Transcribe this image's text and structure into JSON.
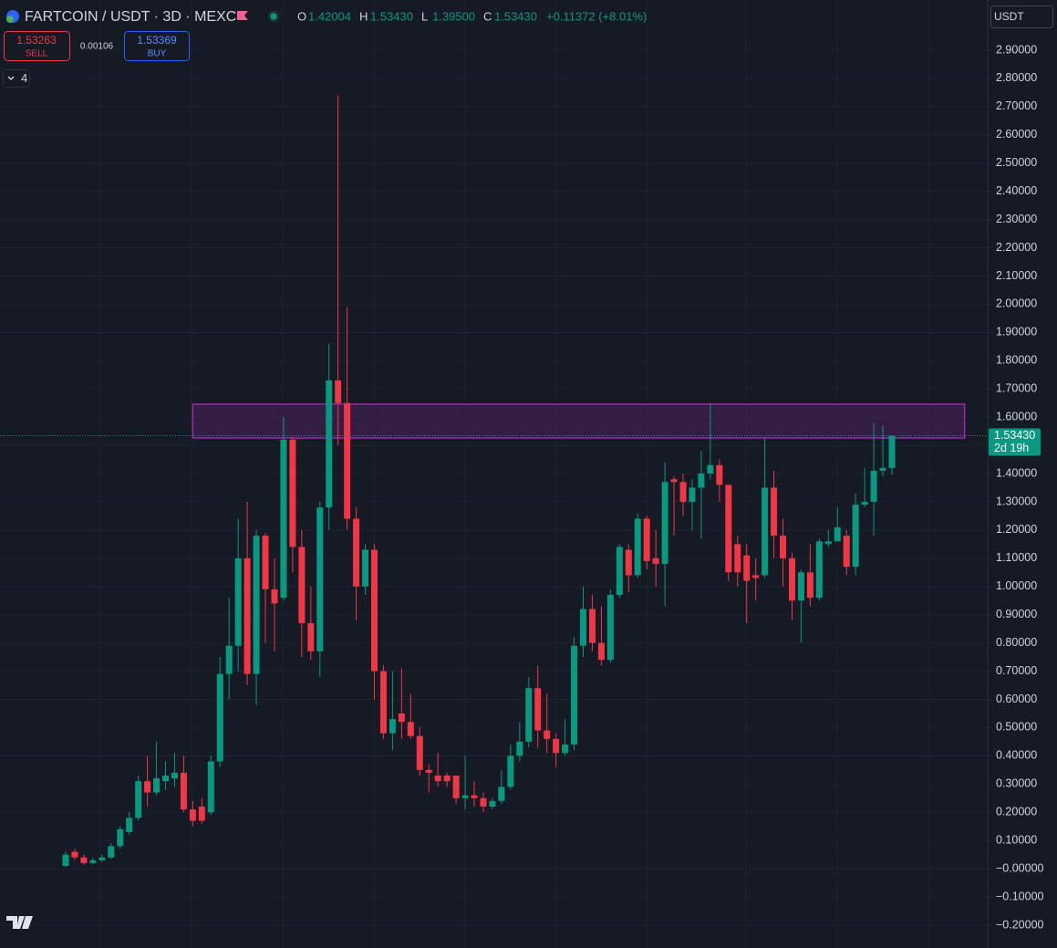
{
  "toolbar": {
    "title": "FARTCOIN / USDT · 3D · MEXC",
    "ohlc": [
      {
        "label": "O",
        "value": "1.42004"
      },
      {
        "label": "H",
        "value": "1.53430"
      },
      {
        "label": "L",
        "value": "1.39500"
      },
      {
        "label": "C",
        "value": "1.53430"
      }
    ],
    "change": "+0.11372 (+8.01%)",
    "sell_price": "1.53263",
    "sell": "SELL",
    "spread": "0.00106",
    "buy_price": "1.53369",
    "buy": "BUY",
    "indicators": "4",
    "currency": "USDT"
  },
  "chart_data": {
    "type": "candlestick",
    "up_color": "#089981",
    "down_color": "#f23645",
    "open": [
      0.01,
      0.06,
      0.04,
      0.02,
      0.03,
      0.04,
      0.08,
      0.13,
      0.18,
      0.31,
      0.27,
      0.31,
      0.32,
      0.34,
      0.21,
      0.22,
      0.2,
      0.38,
      0.69,
      0.79,
      1.1,
      0.69,
      1.18,
      0.99,
      0.96,
      1.52,
      1.14,
      0.87,
      0.77,
      1.28,
      1.73,
      1.65,
      1.24,
      1.0,
      1.13,
      0.7,
      0.48,
      0.55,
      0.52,
      0.47,
      0.35,
      0.33,
      0.33,
      0.33,
      0.25,
      0.26,
      0.25,
      0.22,
      0.24,
      0.29,
      0.4,
      0.45,
      0.64,
      0.49,
      0.46,
      0.41,
      0.44,
      0.79,
      0.92,
      0.8,
      0.74,
      0.97,
      1.13,
      1.04,
      1.24,
      1.1,
      1.08,
      1.38,
      1.37,
      1.3,
      1.35,
      1.4,
      1.43,
      1.36,
      1.15,
      1.11,
      1.04,
      1.04,
      1.35,
      1.18,
      1.1,
      0.95,
      1.05,
      0.96,
      1.15,
      1.16,
      1.18,
      1.07,
      1.29,
      1.3,
      1.41,
      1.42004
    ],
    "high": [
      0.06,
      0.07,
      0.05,
      0.04,
      0.05,
      0.09,
      0.15,
      0.2,
      0.33,
      0.4,
      0.45,
      0.38,
      0.41,
      0.4,
      0.24,
      0.25,
      0.4,
      0.75,
      0.96,
      1.24,
      1.3,
      1.2,
      1.19,
      1.1,
      1.6,
      1.53,
      1.2,
      1.0,
      1.3,
      1.86,
      2.74,
      1.99,
      1.28,
      1.15,
      1.15,
      0.72,
      0.7,
      0.71,
      0.62,
      0.5,
      0.37,
      0.41,
      0.34,
      0.33,
      0.4,
      0.31,
      0.27,
      0.25,
      0.35,
      0.44,
      0.52,
      0.68,
      0.72,
      0.62,
      0.48,
      0.53,
      0.82,
      1.0,
      0.97,
      0.93,
      0.99,
      1.15,
      1.15,
      1.26,
      1.25,
      1.2,
      1.44,
      1.39,
      1.4,
      1.38,
      1.48,
      1.65,
      1.45,
      1.36,
      1.18,
      1.15,
      1.1,
      1.53,
      1.41,
      1.24,
      1.12,
      1.06,
      1.15,
      1.17,
      1.2,
      1.28,
      1.2,
      1.33,
      1.42,
      1.58,
      1.57,
      1.5343
    ],
    "low": [
      0.005,
      0.03,
      0.015,
      0.015,
      0.025,
      0.035,
      0.07,
      0.12,
      0.17,
      0.22,
      0.26,
      0.28,
      0.29,
      0.2,
      0.15,
      0.16,
      0.19,
      0.36,
      0.6,
      0.7,
      0.65,
      0.58,
      0.8,
      0.77,
      0.95,
      1.05,
      0.75,
      0.74,
      0.68,
      1.2,
      1.5,
      1.2,
      0.88,
      0.97,
      0.6,
      0.46,
      0.42,
      0.46,
      0.46,
      0.33,
      0.27,
      0.29,
      0.29,
      0.23,
      0.21,
      0.22,
      0.2,
      0.21,
      0.23,
      0.28,
      0.38,
      0.43,
      0.43,
      0.41,
      0.36,
      0.4,
      0.42,
      0.75,
      0.77,
      0.72,
      0.73,
      0.96,
      0.98,
      1.03,
      1.06,
      1.0,
      0.93,
      1.18,
      1.25,
      1.2,
      1.17,
      1.38,
      1.3,
      1.02,
      1.0,
      0.87,
      0.95,
      1.03,
      1.1,
      1.0,
      0.88,
      0.8,
      0.93,
      0.95,
      1.14,
      1.16,
      1.04,
      1.04,
      1.28,
      1.18,
      1.39,
      1.395
    ],
    "close": [
      0.05,
      0.04,
      0.02,
      0.03,
      0.04,
      0.08,
      0.14,
      0.18,
      0.31,
      0.27,
      0.32,
      0.33,
      0.34,
      0.21,
      0.17,
      0.17,
      0.38,
      0.69,
      0.79,
      1.1,
      0.69,
      1.18,
      0.99,
      0.94,
      1.52,
      1.14,
      0.87,
      0.77,
      1.28,
      1.73,
      1.65,
      1.24,
      1.0,
      1.13,
      0.7,
      0.48,
      0.53,
      0.52,
      0.47,
      0.35,
      0.34,
      0.31,
      0.31,
      0.25,
      0.26,
      0.25,
      0.22,
      0.24,
      0.29,
      0.4,
      0.45,
      0.64,
      0.49,
      0.46,
      0.41,
      0.44,
      0.79,
      0.92,
      0.8,
      0.74,
      0.97,
      1.14,
      1.04,
      1.24,
      1.09,
      1.08,
      1.37,
      1.37,
      1.3,
      1.35,
      1.4,
      1.43,
      1.36,
      1.05,
      1.05,
      1.02,
      1.03,
      1.35,
      1.18,
      1.1,
      0.95,
      1.05,
      0.96,
      1.16,
      1.16,
      1.21,
      1.07,
      1.29,
      1.3,
      1.41,
      1.42,
      1.5343
    ],
    "zone": {
      "from": 14,
      "to": 99,
      "low": 1.526,
      "high": 1.646,
      "color": "#9c27b0"
    },
    "price_tag": {
      "price": "1.53430",
      "countdown": "2d 19h"
    },
    "ylim": [
      -0.2615,
      3.0778
    ],
    "yticks": [
      {
        "value": 2.9,
        "label": "2.90000"
      },
      {
        "value": 2.8,
        "label": "2.80000"
      },
      {
        "value": 2.7,
        "label": "2.70000"
      },
      {
        "value": 2.6,
        "label": "2.60000"
      },
      {
        "value": 2.5,
        "label": "2.50000"
      },
      {
        "value": 2.4,
        "label": "2.40000"
      },
      {
        "value": 2.3,
        "label": "2.30000"
      },
      {
        "value": 2.2,
        "label": "2.20000"
      },
      {
        "value": 2.1,
        "label": "2.10000"
      },
      {
        "value": 2.0,
        "label": "2.00000"
      },
      {
        "value": 1.9,
        "label": "1.90000"
      },
      {
        "value": 1.8,
        "label": "1.80000"
      },
      {
        "value": 1.7,
        "label": "1.70000"
      },
      {
        "value": 1.6,
        "label": "1.60000"
      },
      {
        "value": 1.5,
        "label": "1.50000"
      },
      {
        "value": 1.4,
        "label": "1.40000"
      },
      {
        "value": 1.3,
        "label": "1.30000"
      },
      {
        "value": 1.2,
        "label": "1.20000"
      },
      {
        "value": 1.1,
        "label": "1.10000"
      },
      {
        "value": 1.0,
        "label": "1.00000"
      },
      {
        "value": 0.9,
        "label": "0.90000"
      },
      {
        "value": 0.8,
        "label": "0.80000"
      },
      {
        "value": 0.7,
        "label": "0.70000"
      },
      {
        "value": 0.6,
        "label": "0.60000"
      },
      {
        "value": 0.5,
        "label": "0.50000"
      },
      {
        "value": 0.4,
        "label": "0.40000"
      },
      {
        "value": 0.3,
        "label": "0.30000"
      },
      {
        "value": 0.2,
        "label": "0.20000"
      },
      {
        "value": 0.1,
        "label": "0.10000"
      },
      {
        "value": 0,
        "label": "−0.00000"
      },
      {
        "value": -0.1,
        "label": "−0.10000"
      },
      {
        "value": -0.2,
        "label": "−0.20000"
      }
    ],
    "grid": true
  }
}
